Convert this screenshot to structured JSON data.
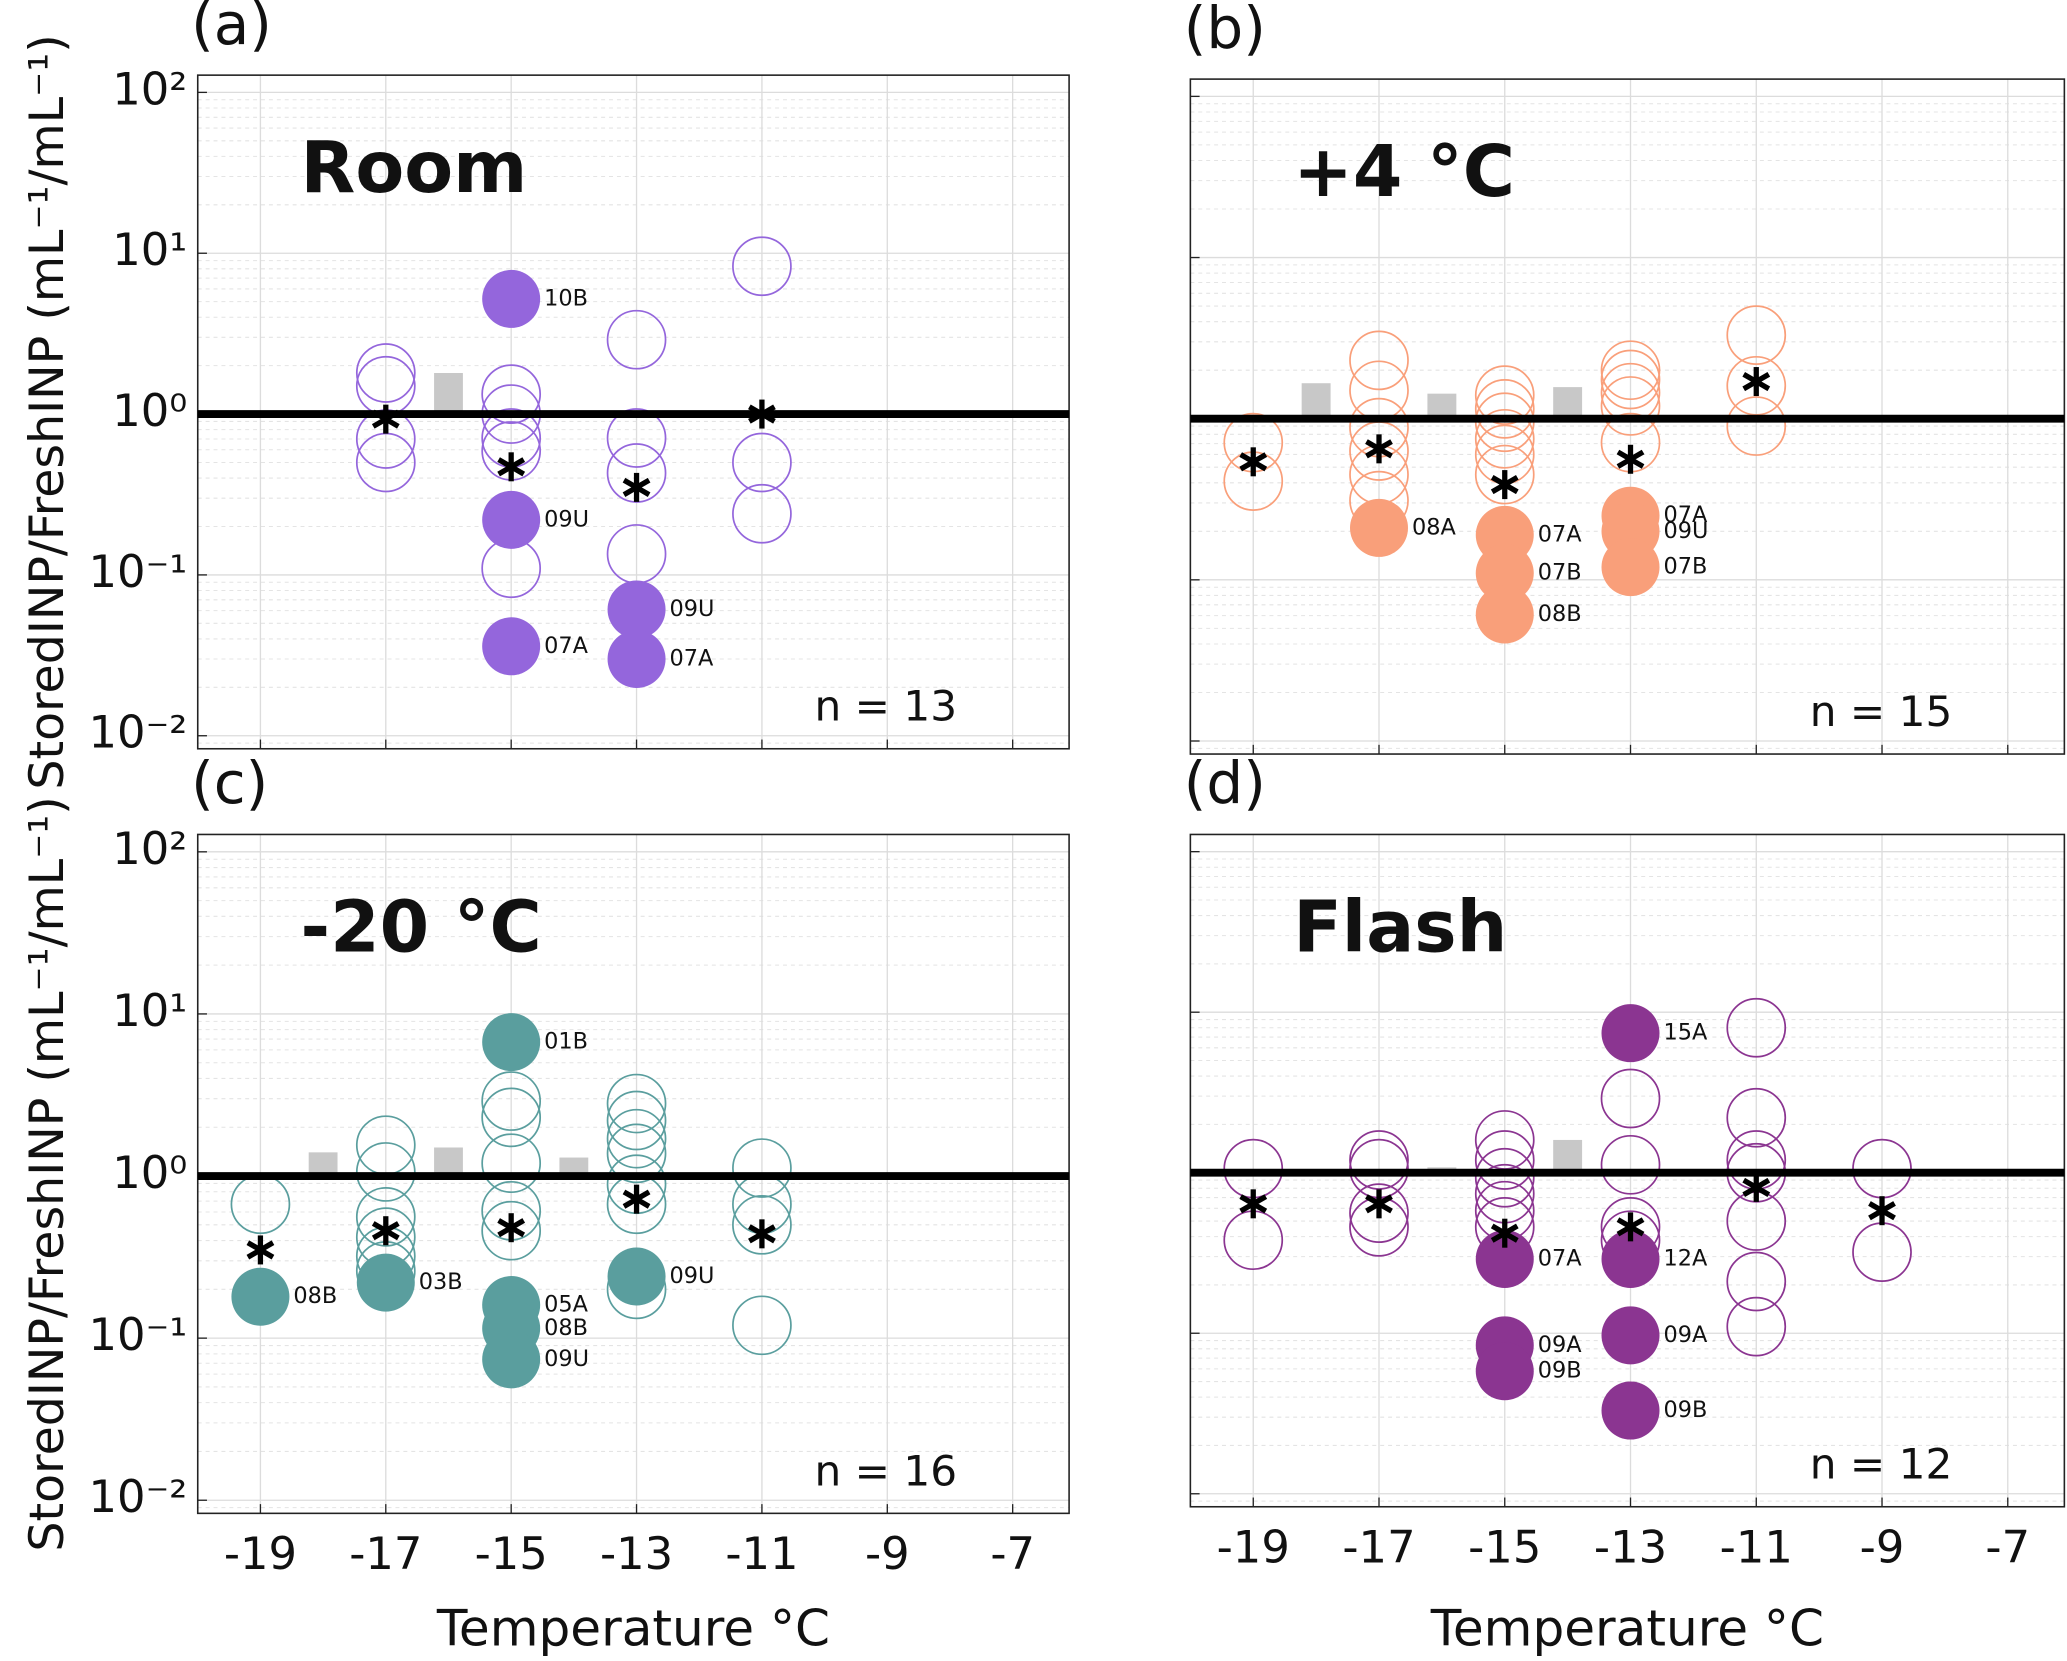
{
  "chart_data": [
    {
      "type": "scatter",
      "panel": "(a)",
      "title": "Room",
      "color": "#9466dc",
      "note": "n = 13",
      "ylabel": "StoredINP/FreshINP (mL⁻¹/mL⁻¹)",
      "log_y": true,
      "grid": true,
      "hline": 1,
      "xlim": [
        -20,
        -6.1
      ],
      "xticks": [
        -19,
        -17,
        -15,
        -13,
        -11,
        -9,
        -7
      ],
      "ylim": [
        0.0083,
        128
      ],
      "yticks": [
        {
          "value": 0.01,
          "label": "10⁻²"
        },
        {
          "value": 0.1,
          "label": "10⁻¹"
        },
        {
          "value": 1,
          "label": "10⁰"
        },
        {
          "value": 10,
          "label": "10¹"
        },
        {
          "value": 100,
          "label": "10²"
        }
      ],
      "series": [
        {
          "marker": "open",
          "x": [
            -17,
            -17,
            -17,
            -17,
            -15,
            -15,
            -15,
            -15,
            -15,
            -13,
            -13,
            -13,
            -13,
            -11,
            -11,
            -11
          ],
          "values": [
            1.8,
            1.5,
            0.7,
            0.5,
            1.33,
            1.0,
            0.71,
            0.59,
            0.11,
            2.9,
            0.71,
            0.43,
            0.135,
            8.3,
            0.5,
            0.24
          ]
        },
        {
          "marker": "filled",
          "x": [
            -15,
            -15,
            -15,
            -13,
            -13
          ],
          "values": [
            5.2,
            0.22,
            0.036,
            0.061,
            0.03
          ],
          "labels": [
            "10B",
            "09U",
            "07A",
            "09U",
            "07A"
          ]
        },
        {
          "marker": "asterisk",
          "x": [
            -17,
            -15,
            -13,
            -11
          ],
          "values": [
            0.93,
            0.47,
            0.35,
            1.0
          ]
        },
        {
          "marker": "bar",
          "color": "#c8c8c8",
          "x": [
            -16
          ],
          "values": [
            1.8
          ]
        }
      ]
    },
    {
      "type": "scatter",
      "panel": "(b)",
      "title": "+4 °C",
      "color": "#f99f7a",
      "note": "n = 15",
      "log_y": true,
      "grid": true,
      "hline": 1,
      "xlim": [
        -20,
        -6.1
      ],
      "xticks": [
        -19,
        -17,
        -15,
        -13,
        -11,
        -9,
        -7
      ],
      "ylim": [
        0.0083,
        128
      ],
      "yticks": [
        0.01,
        0.1,
        1,
        10,
        100
      ],
      "series": [
        {
          "marker": "open",
          "x": [
            -19,
            -19,
            -17,
            -17,
            -17,
            -17,
            -17,
            -17,
            -15,
            -15,
            -15,
            -15,
            -15,
            -15,
            -13,
            -13,
            -13,
            -13,
            -13,
            -11,
            -11,
            -11
          ],
          "values": [
            0.71,
            0.41,
            2.3,
            1.5,
            0.88,
            0.63,
            0.45,
            0.31,
            1.4,
            1.15,
            0.95,
            0.75,
            0.6,
            0.45,
            2.0,
            1.75,
            1.45,
            1.2,
            0.71,
            3.3,
            1.6,
            0.9
          ]
        },
        {
          "marker": "filled",
          "x": [
            -17,
            -15,
            -15,
            -15,
            -13,
            -13,
            -13
          ],
          "values": [
            0.21,
            0.19,
            0.11,
            0.061,
            0.25,
            0.2,
            0.12
          ],
          "labels": [
            "08A",
            "07A",
            "07B",
            "08B",
            "07A",
            "09U",
            "07B"
          ]
        },
        {
          "marker": "asterisk",
          "x": [
            -19,
            -17,
            -15,
            -13,
            -11
          ],
          "values": [
            0.54,
            0.65,
            0.39,
            0.56,
            1.7
          ]
        },
        {
          "marker": "bar",
          "color": "#c8c8c8",
          "x": [
            -18,
            -16,
            -14
          ],
          "values": [
            1.66,
            1.43,
            1.57
          ]
        }
      ]
    },
    {
      "type": "scatter",
      "panel": "(c)",
      "title": "-20 °C",
      "color": "#5a9e9e",
      "note": "n = 16",
      "ylabel": "StoredINP/FreshINP (mL⁻¹/mL⁻¹)",
      "xlabel": "Temperature °C",
      "log_y": true,
      "grid": true,
      "hline": 1,
      "xlim": [
        -20,
        -6.1
      ],
      "xticks": [
        -19,
        -17,
        -15,
        -13,
        -11,
        -9,
        -7
      ],
      "ylim": [
        0.0083,
        128
      ],
      "yticks": [
        {
          "value": 0.01,
          "label": "10⁻²"
        },
        {
          "value": 0.1,
          "label": "10⁻¹"
        },
        {
          "value": 1,
          "label": "10⁰"
        },
        {
          "value": 10,
          "label": "10¹"
        },
        {
          "value": 100,
          "label": "10²"
        }
      ],
      "series": [
        {
          "marker": "open",
          "x": [
            -19,
            -17,
            -17,
            -17,
            -17,
            -17,
            -17,
            -15,
            -15,
            -15,
            -15,
            -15,
            -13,
            -13,
            -13,
            -13,
            -13,
            -13,
            -13,
            -11,
            -11,
            -11,
            -11
          ],
          "values": [
            0.67,
            1.55,
            1.06,
            0.56,
            0.42,
            0.32,
            0.26,
            2.9,
            2.3,
            1.2,
            0.61,
            0.46,
            2.8,
            2.2,
            1.7,
            1.38,
            0.89,
            0.67,
            0.2,
            1.12,
            0.67,
            0.5,
            0.12
          ]
        },
        {
          "marker": "filled",
          "x": [
            -19,
            -17,
            -15,
            -15,
            -15,
            -15,
            -13
          ],
          "values": [
            0.18,
            0.22,
            6.7,
            0.16,
            0.115,
            0.074,
            0.24
          ],
          "labels": [
            "08B",
            "03B",
            "01B",
            "05A",
            "08B",
            "09U",
            "09U"
          ]
        },
        {
          "marker": "asterisk",
          "x": [
            -19,
            -17,
            -15,
            -13,
            -11
          ],
          "values": [
            0.35,
            0.46,
            0.48,
            0.72,
            0.44
          ]
        },
        {
          "marker": "bar",
          "color": "#c8c8c8",
          "x": [
            -18,
            -16,
            -14
          ],
          "values": [
            1.4,
            1.5,
            1.3
          ]
        }
      ]
    },
    {
      "type": "scatter",
      "panel": "(d)",
      "title": "Flash",
      "color": "#8b3591",
      "note": "n = 12",
      "xlabel": "Temperature °C",
      "log_y": true,
      "grid": true,
      "hline": 1,
      "xlim": [
        -20,
        -6.1
      ],
      "xticks": [
        -19,
        -17,
        -15,
        -13,
        -11,
        -9,
        -7
      ],
      "ylim": [
        0.0083,
        128
      ],
      "yticks": [
        0.01,
        0.1,
        1,
        10,
        100
      ],
      "series": [
        {
          "marker": "open",
          "x": [
            -19,
            -19,
            -17,
            -17,
            -17,
            -17,
            -15,
            -15,
            -15,
            -15,
            -15,
            -15,
            -13,
            -13,
            -13,
            -13,
            -11,
            -11,
            -11,
            -11,
            -11,
            -11,
            -11,
            -9,
            -9
          ],
          "values": [
            1.06,
            0.38,
            1.2,
            1.06,
            0.56,
            0.46,
            1.6,
            1.2,
            0.93,
            0.74,
            0.58,
            0.46,
            2.9,
            1.12,
            0.46,
            0.38,
            8.0,
            2.2,
            1.2,
            1.0,
            0.5,
            0.21,
            0.11,
            1.06,
            0.32
          ]
        },
        {
          "marker": "filled",
          "x": [
            -15,
            -15,
            -15,
            -13,
            -13,
            -13,
            -13
          ],
          "values": [
            0.29,
            0.084,
            0.058,
            7.4,
            0.29,
            0.097,
            0.033
          ],
          "labels": [
            "07A",
            "09A",
            "09B",
            "15A",
            "12A",
            "09A",
            "09B"
          ]
        },
        {
          "marker": "asterisk",
          "x": [
            -19,
            -17,
            -15,
            -13,
            -11,
            -9
          ],
          "values": [
            0.64,
            0.64,
            0.42,
            0.46,
            0.81,
            0.58
          ]
        },
        {
          "marker": "bar",
          "color": "#c8c8c8",
          "x": [
            -16,
            -14
          ],
          "values": [
            1.08,
            1.6
          ]
        }
      ]
    }
  ]
}
